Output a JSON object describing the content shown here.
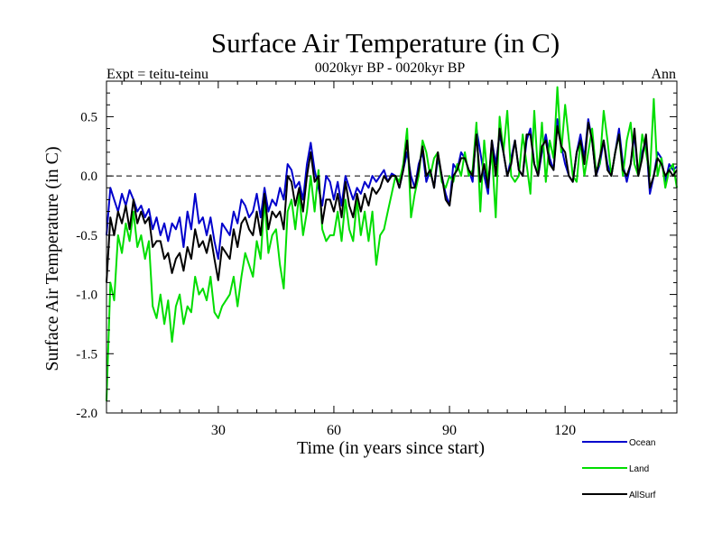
{
  "chart_data": {
    "type": "line",
    "title": "Surface Air Temperature (in C)",
    "subtitle": "0020kyr BP - 0020kyr BP",
    "left_label": "Expt = teitu-teinu",
    "right_label": "Ann",
    "xlabel": "Time (in years since start)",
    "ylabel": "Surface Air Temperature (in C)",
    "xlim": [
      1,
      149
    ],
    "ylim": [
      -2.0,
      0.8
    ],
    "xticks": [
      30,
      60,
      90,
      120
    ],
    "yticks": [
      -2.0,
      -1.5,
      -1.0,
      -0.5,
      0.0,
      0.5
    ],
    "ytick_labels": [
      "-2.0",
      "-1.5",
      "-1.0",
      "-0.5",
      "0.0",
      "0.5"
    ],
    "zero_line": 0.0,
    "legend_position": "bottom-right",
    "series": [
      {
        "name": "Ocean",
        "color": "#0000cc",
        "x": [
          1,
          2,
          3,
          4,
          5,
          6,
          7,
          8,
          9,
          10,
          11,
          12,
          13,
          14,
          15,
          16,
          17,
          18,
          19,
          20,
          21,
          22,
          23,
          24,
          25,
          26,
          27,
          28,
          29,
          30,
          31,
          32,
          33,
          34,
          35,
          36,
          37,
          38,
          39,
          40,
          41,
          42,
          43,
          44,
          45,
          46,
          47,
          48,
          49,
          50,
          51,
          52,
          53,
          54,
          55,
          56,
          57,
          58,
          59,
          60,
          61,
          62,
          63,
          64,
          65,
          66,
          67,
          68,
          69,
          70,
          71,
          72,
          73,
          74,
          75,
          76,
          77,
          78,
          79,
          80,
          81,
          82,
          83,
          84,
          85,
          86,
          87,
          88,
          89,
          90,
          91,
          92,
          93,
          94,
          95,
          96,
          97,
          98,
          99,
          100,
          101,
          102,
          103,
          104,
          105,
          106,
          107,
          108,
          109,
          110,
          111,
          112,
          113,
          114,
          115,
          116,
          117,
          118,
          119,
          120,
          121,
          122,
          123,
          124,
          125,
          126,
          127,
          128,
          129,
          130,
          131,
          132,
          133,
          134,
          135,
          136,
          137,
          138,
          139,
          140,
          141,
          142,
          143,
          144,
          145,
          146,
          147,
          148,
          149
        ],
        "values": [
          -0.5,
          -0.1,
          -0.2,
          -0.3,
          -0.15,
          -0.25,
          -0.12,
          -0.2,
          -0.3,
          -0.25,
          -0.35,
          -0.28,
          -0.45,
          -0.35,
          -0.5,
          -0.4,
          -0.55,
          -0.4,
          -0.45,
          -0.35,
          -0.6,
          -0.3,
          -0.45,
          -0.15,
          -0.4,
          -0.35,
          -0.5,
          -0.35,
          -0.55,
          -0.7,
          -0.4,
          -0.45,
          -0.5,
          -0.3,
          -0.4,
          -0.2,
          -0.25,
          -0.35,
          -0.3,
          -0.15,
          -0.35,
          -0.1,
          -0.3,
          -0.2,
          -0.25,
          -0.1,
          -0.2,
          0.1,
          0.05,
          -0.1,
          -0.05,
          -0.2,
          0.1,
          0.28,
          0.05,
          -0.1,
          -0.25,
          0.0,
          -0.05,
          -0.2,
          -0.05,
          -0.25,
          0.0,
          -0.1,
          -0.2,
          -0.1,
          -0.15,
          -0.05,
          -0.1,
          0.0,
          -0.05,
          0.0,
          0.05,
          -0.05,
          0.02,
          0.0,
          -0.1,
          0.05,
          0.2,
          0.0,
          -0.1,
          0.1,
          0.2,
          -0.05,
          0.05,
          -0.1,
          0.15,
          0.0,
          -0.15,
          -0.25,
          0.1,
          0.05,
          0.2,
          0.15,
          0.05,
          -0.05,
          0.4,
          0.2,
          0.0,
          -0.15,
          0.3,
          0.1,
          0.35,
          0.2,
          0.0,
          0.15,
          0.3,
          0.05,
          0.0,
          0.3,
          0.4,
          0.1,
          0.0,
          0.2,
          0.35,
          0.15,
          0.05,
          0.48,
          0.25,
          0.1,
          0.0,
          -0.05,
          0.2,
          0.35,
          0.15,
          0.48,
          0.3,
          0.0,
          0.1,
          0.3,
          0.1,
          0.0,
          0.2,
          0.4,
          0.1,
          -0.05,
          0.1,
          0.35,
          0.0,
          0.2,
          0.3,
          -0.15,
          0.0,
          0.2,
          0.15,
          -0.05,
          0.1,
          0.05,
          0.08
        ]
      },
      {
        "name": "Land",
        "color": "#00dd00",
        "x": [
          1,
          2,
          3,
          4,
          5,
          6,
          7,
          8,
          9,
          10,
          11,
          12,
          13,
          14,
          15,
          16,
          17,
          18,
          19,
          20,
          21,
          22,
          23,
          24,
          25,
          26,
          27,
          28,
          29,
          30,
          31,
          32,
          33,
          34,
          35,
          36,
          37,
          38,
          39,
          40,
          41,
          42,
          43,
          44,
          45,
          46,
          47,
          48,
          49,
          50,
          51,
          52,
          53,
          54,
          55,
          56,
          57,
          58,
          59,
          60,
          61,
          62,
          63,
          64,
          65,
          66,
          67,
          68,
          69,
          70,
          71,
          72,
          73,
          74,
          75,
          76,
          77,
          78,
          79,
          80,
          81,
          82,
          83,
          84,
          85,
          86,
          87,
          88,
          89,
          90,
          91,
          92,
          93,
          94,
          95,
          96,
          97,
          98,
          99,
          100,
          101,
          102,
          103,
          104,
          105,
          106,
          107,
          108,
          109,
          110,
          111,
          112,
          113,
          114,
          115,
          116,
          117,
          118,
          119,
          120,
          121,
          122,
          123,
          124,
          125,
          126,
          127,
          128,
          129,
          130,
          131,
          132,
          133,
          134,
          135,
          136,
          137,
          138,
          139,
          140,
          141,
          142,
          143,
          144,
          145,
          146,
          147,
          148,
          149
        ],
        "values": [
          -1.9,
          -0.9,
          -1.05,
          -0.5,
          -0.65,
          -0.4,
          -0.55,
          -0.3,
          -0.6,
          -0.5,
          -0.7,
          -0.55,
          -1.1,
          -1.2,
          -1.0,
          -1.25,
          -1.05,
          -1.4,
          -1.1,
          -1.0,
          -1.25,
          -1.1,
          -1.15,
          -0.85,
          -1.0,
          -0.95,
          -1.05,
          -0.85,
          -1.15,
          -1.2,
          -1.1,
          -1.05,
          -1.0,
          -0.85,
          -1.1,
          -0.85,
          -0.65,
          -0.75,
          -0.85,
          -0.55,
          -0.7,
          -0.2,
          -0.65,
          -0.5,
          -0.45,
          -0.75,
          -0.95,
          -0.3,
          -0.2,
          -0.45,
          -0.15,
          -0.5,
          -0.3,
          0.0,
          -0.3,
          0.05,
          -0.45,
          -0.55,
          -0.5,
          -0.5,
          -0.3,
          -0.55,
          -0.2,
          -0.45,
          -0.55,
          -0.2,
          -0.5,
          -0.3,
          -0.55,
          -0.3,
          -0.75,
          -0.5,
          -0.45,
          -0.3,
          -0.15,
          0.0,
          -0.05,
          0.1,
          0.4,
          -0.35,
          -0.15,
          0.0,
          0.3,
          0.2,
          0.0,
          0.15,
          0.2,
          -0.05,
          -0.1,
          0.0,
          -0.05,
          0.1,
          0.0,
          0.2,
          0.0,
          0.05,
          0.45,
          -0.3,
          0.3,
          -0.05,
          0.2,
          -0.35,
          0.5,
          0.2,
          0.55,
          0.0,
          -0.05,
          0.0,
          0.35,
          0.1,
          -0.15,
          0.55,
          0.0,
          0.45,
          -0.05,
          0.3,
          0.15,
          0.75,
          0.2,
          0.6,
          0.3,
          0.0,
          -0.05,
          0.3,
          0.0,
          0.2,
          0.4,
          0.05,
          0.1,
          0.55,
          0.3,
          0.0,
          0.2,
          0.35,
          0.0,
          0.3,
          0.45,
          0.1,
          0.0,
          0.35,
          0.2,
          0.0,
          0.65,
          0.0,
          0.15,
          -0.1,
          0.05,
          0.1,
          -0.1
        ]
      },
      {
        "name": "AllSurf",
        "color": "#000000",
        "x": [
          1,
          2,
          3,
          4,
          5,
          6,
          7,
          8,
          9,
          10,
          11,
          12,
          13,
          14,
          15,
          16,
          17,
          18,
          19,
          20,
          21,
          22,
          23,
          24,
          25,
          26,
          27,
          28,
          29,
          30,
          31,
          32,
          33,
          34,
          35,
          36,
          37,
          38,
          39,
          40,
          41,
          42,
          43,
          44,
          45,
          46,
          47,
          48,
          49,
          50,
          51,
          52,
          53,
          54,
          55,
          56,
          57,
          58,
          59,
          60,
          61,
          62,
          63,
          64,
          65,
          66,
          67,
          68,
          69,
          70,
          71,
          72,
          73,
          74,
          75,
          76,
          77,
          78,
          79,
          80,
          81,
          82,
          83,
          84,
          85,
          86,
          87,
          88,
          89,
          90,
          91,
          92,
          93,
          94,
          95,
          96,
          97,
          98,
          99,
          100,
          101,
          102,
          103,
          104,
          105,
          106,
          107,
          108,
          109,
          110,
          111,
          112,
          113,
          114,
          115,
          116,
          117,
          118,
          119,
          120,
          121,
          122,
          123,
          124,
          125,
          126,
          127,
          128,
          129,
          130,
          131,
          132,
          133,
          134,
          135,
          136,
          137,
          138,
          139,
          140,
          141,
          142,
          143,
          144,
          145,
          146,
          147,
          148,
          149
        ],
        "values": [
          -0.9,
          -0.35,
          -0.5,
          -0.3,
          -0.4,
          -0.25,
          -0.45,
          -0.2,
          -0.4,
          -0.3,
          -0.4,
          -0.35,
          -0.6,
          -0.55,
          -0.55,
          -0.7,
          -0.65,
          -0.82,
          -0.7,
          -0.65,
          -0.8,
          -0.6,
          -0.7,
          -0.45,
          -0.6,
          -0.55,
          -0.65,
          -0.5,
          -0.7,
          -0.88,
          -0.6,
          -0.65,
          -0.7,
          -0.45,
          -0.6,
          -0.4,
          -0.35,
          -0.45,
          -0.5,
          -0.3,
          -0.5,
          -0.15,
          -0.45,
          -0.3,
          -0.35,
          -0.3,
          -0.45,
          0.0,
          -0.05,
          -0.25,
          -0.1,
          -0.3,
          0.0,
          0.2,
          -0.05,
          0.0,
          -0.4,
          -0.2,
          -0.2,
          -0.3,
          -0.15,
          -0.35,
          -0.05,
          -0.25,
          -0.35,
          -0.15,
          -0.3,
          -0.15,
          -0.25,
          -0.1,
          -0.15,
          -0.1,
          0.0,
          -0.05,
          0.0,
          0.0,
          -0.1,
          0.05,
          0.3,
          -0.1,
          -0.1,
          0.05,
          0.25,
          0.0,
          0.05,
          -0.1,
          0.2,
          0.0,
          -0.2,
          -0.25,
          0.0,
          0.05,
          0.15,
          0.15,
          0.05,
          0.0,
          0.35,
          -0.05,
          0.1,
          -0.1,
          0.3,
          0.0,
          0.4,
          0.2,
          0.0,
          0.1,
          0.3,
          0.05,
          0.0,
          0.35,
          0.35,
          0.1,
          0.0,
          0.25,
          0.3,
          0.1,
          0.05,
          0.42,
          0.25,
          0.2,
          0.0,
          -0.05,
          0.2,
          0.3,
          0.1,
          0.45,
          0.3,
          0.0,
          0.15,
          0.3,
          0.05,
          0.0,
          0.2,
          0.35,
          0.05,
          0.0,
          0.1,
          0.4,
          0.0,
          0.15,
          0.35,
          -0.1,
          0.0,
          0.15,
          0.1,
          0.0,
          0.05,
          0.0,
          0.05
        ]
      }
    ]
  }
}
